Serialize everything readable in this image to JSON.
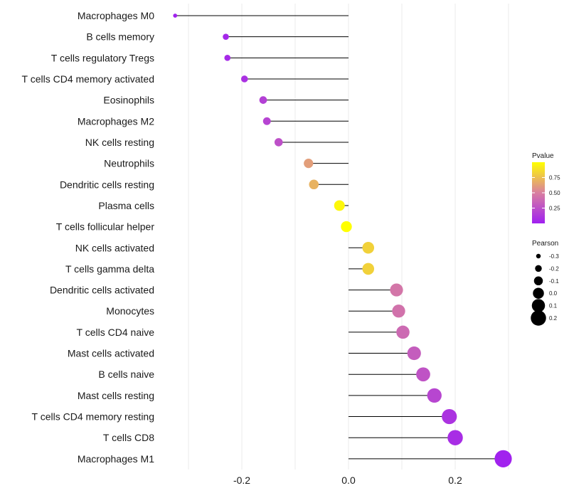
{
  "chart_data": {
    "type": "lollipop",
    "title": "",
    "xlabel": "",
    "ylabel": "",
    "xlim": [
      -0.3,
      0.3
    ],
    "x_ticks": [
      -0.2,
      0.0,
      0.2
    ],
    "x_tick_labels": [
      "-0.2",
      "0.0",
      "0.2"
    ],
    "grid": true,
    "categories": [
      "Macrophages M0",
      "B cells memory",
      "T cells regulatory  Tregs",
      "T cells CD4 memory activated",
      "Eosinophils",
      "Macrophages M2",
      "NK cells resting",
      "Neutrophils",
      "Dendritic cells resting",
      "Plasma cells",
      "T cells follicular helper",
      "NK cells activated",
      "T cells gamma delta",
      "Dendritic cells activated",
      "Monocytes",
      "T cells CD4 naive",
      "Mast cells activated",
      "B cells naive",
      "Mast cells resting",
      "T cells CD4 memory resting",
      "T cells CD8",
      "Macrophages M1"
    ],
    "pearson": [
      -0.325,
      -0.23,
      -0.227,
      -0.195,
      -0.16,
      -0.153,
      -0.131,
      -0.075,
      -0.065,
      -0.017,
      -0.004,
      0.037,
      0.037,
      0.09,
      0.094,
      0.102,
      0.123,
      0.14,
      0.161,
      0.189,
      0.2,
      0.29
    ],
    "pvalue": [
      0.01,
      0.04,
      0.05,
      0.09,
      0.17,
      0.19,
      0.25,
      0.62,
      0.7,
      0.97,
      1.0,
      0.82,
      0.82,
      0.45,
      0.43,
      0.39,
      0.32,
      0.27,
      0.2,
      0.1,
      0.07,
      0.01
    ],
    "legend_pvalue": {
      "title": "Pvalue",
      "ticks": [
        0.25,
        0.5,
        0.75
      ],
      "tick_labels": [
        "0.25",
        "0.50",
        "0.75"
      ],
      "range": [
        0.0,
        1.0
      ],
      "color_low": "#a020f0",
      "color_mid": "#d97fa0",
      "color_high": "#ffff00"
    },
    "legend_pearson": {
      "title": "Pearson",
      "values": [
        -0.3,
        -0.2,
        -0.1,
        0.0,
        0.1,
        0.2
      ],
      "labels": [
        "-0.3",
        "-0.2",
        "-0.1",
        "0.0",
        "0.1",
        "0.2"
      ]
    }
  }
}
